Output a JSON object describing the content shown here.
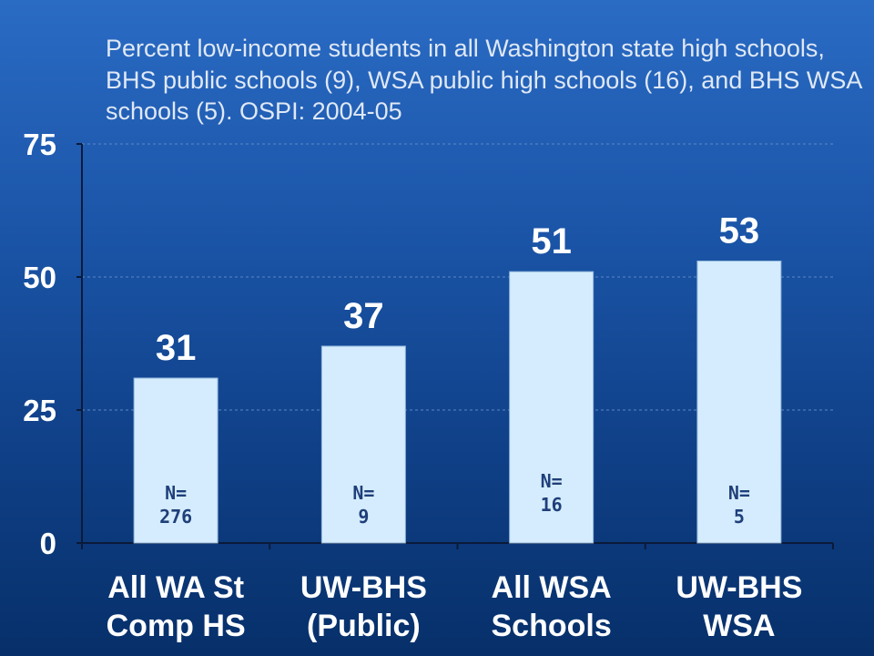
{
  "chart_data": {
    "type": "bar",
    "title": "Percent low-income students in all Washington state high schools, BHS public schools (9), WSA public high schools (16), and BHS WSA schools (5). OSPI: 2004-05",
    "categories": [
      [
        "All WA St",
        "Comp HS"
      ],
      [
        "UW-BHS",
        "(Public)"
      ],
      [
        "All WSA",
        "Schools"
      ],
      [
        "UW-BHS",
        "WSA"
      ]
    ],
    "values": [
      31,
      37,
      51,
      53
    ],
    "n_labels": [
      [
        "N=",
        "276"
      ],
      [
        "N=",
        "9"
      ],
      [
        "N=",
        "16"
      ],
      [
        "N=",
        "5"
      ]
    ],
    "yticks": [
      "0",
      "25",
      "50",
      "75"
    ],
    "ylim": [
      0,
      75
    ],
    "grid": true,
    "colors": {
      "bar_fill": "#d4ecfd",
      "bar_stroke": "#8fb3d9",
      "text": "#ffffff",
      "n_text": "#1f3f7a",
      "axis": "#0a1a3a",
      "grid": "#5b86c8"
    }
  }
}
